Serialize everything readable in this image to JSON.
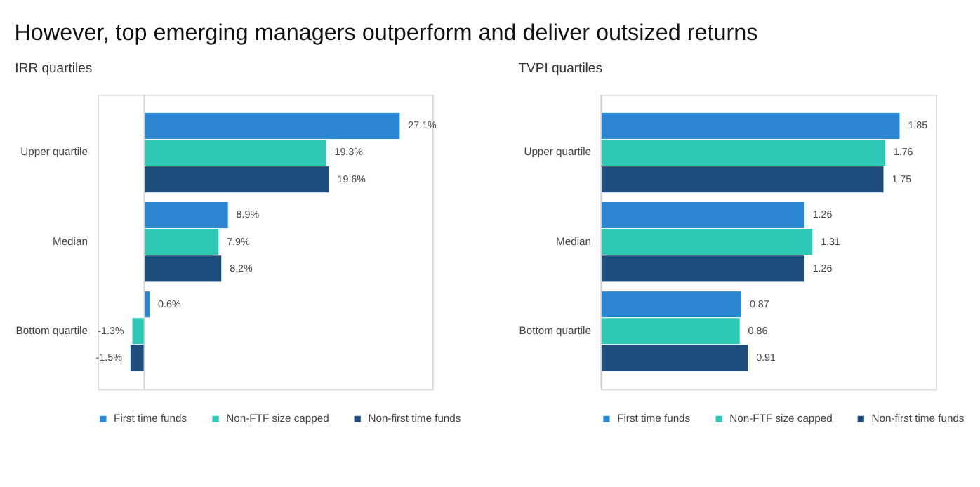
{
  "chart_data": [
    {
      "type": "bar",
      "orientation": "horizontal",
      "title": "However, top emerging managers outperform and deliver outsized returns",
      "subtitle": "IRR quartiles",
      "categories": [
        "Upper quartile",
        "Median",
        "Bottom quartile"
      ],
      "tick_labels": "y",
      "legend": "bottom",
      "grid": false,
      "series": [
        {
          "name": "First time funds",
          "color": "#2b87d3",
          "values": [
            27.1,
            8.9,
            0.6
          ],
          "value_labels": [
            "27.1%",
            "8.9%",
            "0.6%"
          ]
        },
        {
          "name": "Non-FTF size capped",
          "color": "#2ec8b6",
          "values": [
            19.3,
            7.9,
            -1.3
          ],
          "value_labels": [
            "19.3%",
            "7.9%",
            "-1.3%"
          ]
        },
        {
          "name": "Non-first time funds",
          "color": "#1f4e7e",
          "values": [
            19.6,
            8.2,
            -1.5
          ],
          "value_labels": [
            "19.6%",
            "8.2%",
            "-1.5%"
          ]
        }
      ]
    },
    {
      "type": "bar",
      "orientation": "horizontal",
      "title": "TVPI quartiles",
      "categories": [
        "Upper quartile",
        "Median",
        "Bottom quartile"
      ],
      "tick_labels": "y",
      "legend": "bottom",
      "grid": false,
      "data_labels": true,
      "series": [
        {
          "name": "First time funds",
          "color": "#2b87d3",
          "values": [
            1.85,
            1.26,
            0.87
          ]
        },
        {
          "name": "Non-FTF size capped",
          "color": "#2ec8b6",
          "values": [
            1.76,
            1.31,
            0.86
          ]
        },
        {
          "name": "Non-first time funds",
          "color": "#1f4e7e",
          "values": [
            1.75,
            1.26,
            0.91
          ]
        }
      ]
    }
  ]
}
